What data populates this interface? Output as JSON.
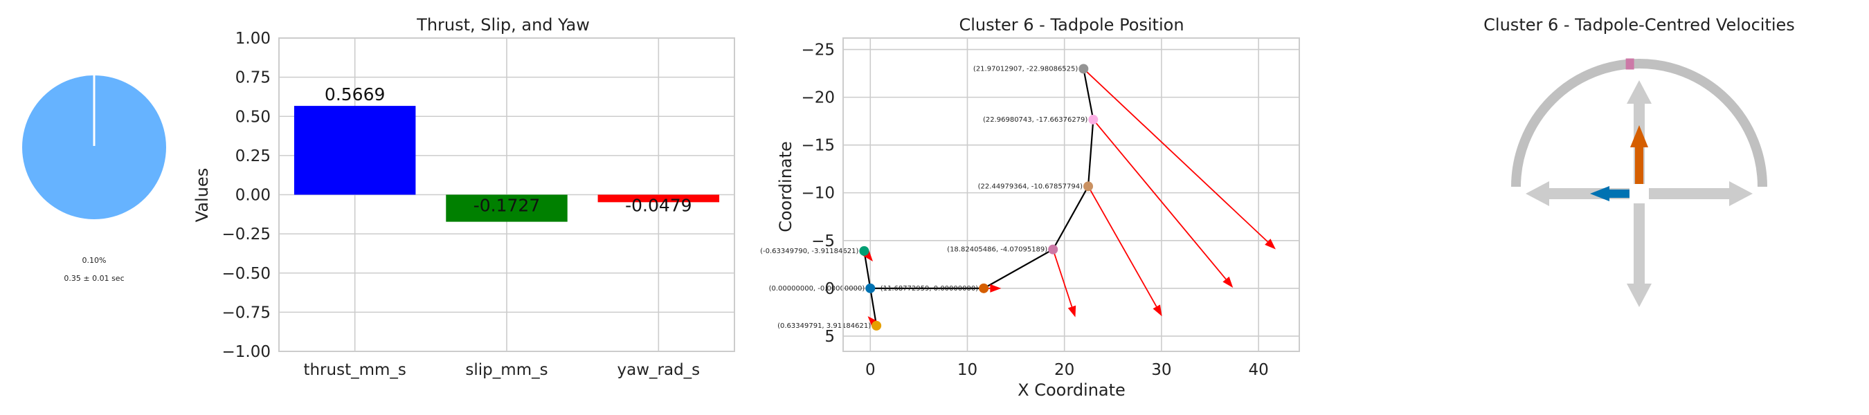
{
  "chart_data": [
    {
      "type": "pie",
      "slices": [
        {
          "value": 99.9,
          "color": "#66b3ff"
        },
        {
          "value": 0.1,
          "color": "#ffffff"
        }
      ],
      "label_percent": "0.10%",
      "label_time": "0.35 ± 0.01 sec"
    },
    {
      "type": "bar",
      "title": "Thrust, Slip, and Yaw",
      "xlabel": "",
      "ylabel": "Values",
      "ylim": [
        -1.0,
        1.0
      ],
      "yticks": [
        -1.0,
        -0.75,
        -0.5,
        -0.25,
        0.0,
        0.25,
        0.5,
        0.75,
        1.0
      ],
      "ytick_labels": [
        "−1.00",
        "−0.75",
        "−0.50",
        "−0.25",
        "0.00",
        "0.25",
        "0.50",
        "0.75",
        "1.00"
      ],
      "categories": [
        "thrust_mm_s",
        "slip_mm_s",
        "yaw_rad_s"
      ],
      "values": [
        0.5669,
        -0.1727,
        -0.0479
      ],
      "value_labels": [
        "0.5669",
        "-0.1727",
        "-0.0479"
      ],
      "colors": [
        "#0000ff",
        "#008000",
        "#ff0000"
      ],
      "grid": true
    },
    {
      "type": "scatter",
      "title": "Cluster 6 - Tadpole Position",
      "xlabel": "X Coordinate",
      "ylabel": "Coordinate",
      "xlim": [
        -2.8,
        44.2
      ],
      "ylim": [
        -26.2,
        6.6
      ],
      "y_inverted": true,
      "xticks": [
        0,
        10,
        20,
        30,
        40
      ],
      "yticks": [
        -25,
        -20,
        -15,
        -10,
        -5,
        0,
        5
      ],
      "ytick_labels": [
        "−25",
        "−20",
        "−15",
        "−10",
        "−5",
        "0",
        "5"
      ],
      "grid": true,
      "points": [
        {
          "x": -0.6334979,
          "y": -3.91184621,
          "color": "#009e73",
          "label": "(-0.63349790, -3.91184621)"
        },
        {
          "x": 0.0,
          "y": 0.0,
          "color": "#0072b2",
          "label": "(0.00000000, -0.00000000)"
        },
        {
          "x": 0.63349791,
          "y": 3.91184621,
          "color": "#e69f00",
          "label": "(0.63349791, 3.91184621)"
        },
        {
          "x": 11.68772959,
          "y": 0.0,
          "color": "#d55e00",
          "label": "(11.68772959, 0.00000000)"
        },
        {
          "x": 18.82405486,
          "y": -4.07095189,
          "color": "#cc79a7",
          "label": "(18.82405486, -4.07095189)"
        },
        {
          "x": 22.44979364,
          "y": -10.67857794,
          "color": "#ca9161",
          "label": "(22.44979364, -10.67857794)"
        },
        {
          "x": 22.96980743,
          "y": -17.66376279,
          "color": "#fbafe4",
          "label": "(22.96980743, -17.66376279)"
        },
        {
          "x": 21.97012907,
          "y": -22.98086525,
          "color": "#949494",
          "label": "(21.97012907, -22.98086525)"
        }
      ],
      "path_order": [
        2,
        1,
        0,
        1,
        3,
        4,
        5,
        6,
        7
      ],
      "arrows": [
        {
          "x": -0.6334979,
          "y": -3.91184621,
          "dx": 0.9,
          "dy": 1.1
        },
        {
          "x": 0.0,
          "y": 0.0,
          "dx": 0.0,
          "dy": 0.0
        },
        {
          "x": 0.63349791,
          "y": 3.91184621,
          "dx": -0.9,
          "dy": -1.0
        },
        {
          "x": 11.68772959,
          "y": 0.0,
          "dx": 1.8,
          "dy": 0.0
        },
        {
          "x": 18.82405486,
          "y": -4.07095189,
          "dx": 2.3,
          "dy": 7.1
        },
        {
          "x": 22.44979364,
          "y": -10.67857794,
          "dx": 7.6,
          "dy": 13.6
        },
        {
          "x": 22.96980743,
          "y": -17.66376279,
          "dx": 14.4,
          "dy": 17.6
        },
        {
          "x": 21.97012907,
          "y": -22.98086525,
          "dx": 19.8,
          "dy": 18.9
        }
      ]
    },
    {
      "type": "other",
      "title": "Cluster 6 - Tadpole-Centred Velocities",
      "thrust_level": 0.5669,
      "slip_level": -0.1727,
      "yaw_marker": -0.0479,
      "colors": {
        "thrust": "#d55e00",
        "slip": "#0072b2",
        "arc": "#c0c0c0",
        "yaw_marker": "#cc79a7",
        "guide": "#cccccc"
      }
    }
  ]
}
